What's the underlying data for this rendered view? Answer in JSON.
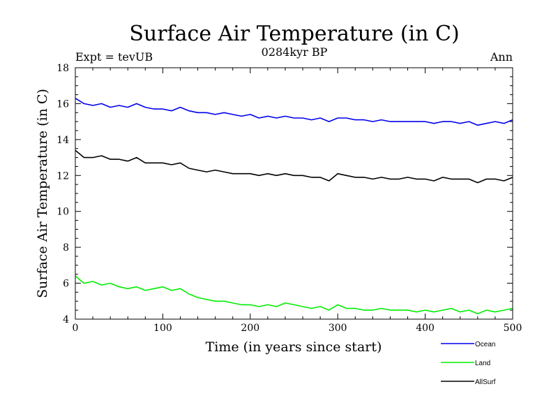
{
  "chart_data": {
    "type": "line",
    "title": "Surface Air Temperature (in C)",
    "subtitle": "0284kyr BP",
    "annotation_left": "Expt = tevUB",
    "annotation_right": "Ann",
    "xlabel": "Time (in years since start)",
    "ylabel": "Surface Air Temperature (in C)",
    "xlim": [
      0,
      500
    ],
    "ylim": [
      4,
      18
    ],
    "xticks": [
      0,
      100,
      200,
      300,
      400,
      500
    ],
    "yticks": [
      4,
      6,
      8,
      10,
      12,
      14,
      16,
      18
    ],
    "legend_position": "below-right",
    "grid": false,
    "series": [
      {
        "name": "Ocean",
        "color": "#0000ee",
        "x": [
          0,
          10,
          20,
          30,
          40,
          50,
          60,
          70,
          80,
          90,
          100,
          110,
          120,
          130,
          140,
          150,
          160,
          170,
          180,
          190,
          200,
          210,
          220,
          230,
          240,
          250,
          260,
          270,
          280,
          290,
          300,
          310,
          320,
          330,
          340,
          350,
          360,
          370,
          380,
          390,
          400,
          410,
          420,
          430,
          440,
          450,
          460,
          470,
          480,
          490,
          500
        ],
        "values": [
          16.3,
          16.0,
          15.9,
          16.0,
          15.8,
          15.9,
          15.8,
          16.0,
          15.8,
          15.7,
          15.7,
          15.6,
          15.8,
          15.6,
          15.5,
          15.5,
          15.4,
          15.5,
          15.4,
          15.3,
          15.4,
          15.2,
          15.3,
          15.2,
          15.3,
          15.2,
          15.2,
          15.1,
          15.2,
          15.0,
          15.2,
          15.2,
          15.1,
          15.1,
          15.0,
          15.1,
          15.0,
          15.0,
          15.0,
          15.0,
          15.0,
          14.9,
          15.0,
          15.0,
          14.9,
          15.0,
          14.8,
          14.9,
          15.0,
          14.9,
          15.1
        ]
      },
      {
        "name": "Land",
        "color": "#00ee00",
        "x": [
          0,
          10,
          20,
          30,
          40,
          50,
          60,
          70,
          80,
          90,
          100,
          110,
          120,
          130,
          140,
          150,
          160,
          170,
          180,
          190,
          200,
          210,
          220,
          230,
          240,
          250,
          260,
          270,
          280,
          290,
          300,
          310,
          320,
          330,
          340,
          350,
          360,
          370,
          380,
          390,
          400,
          410,
          420,
          430,
          440,
          450,
          460,
          470,
          480,
          490,
          500
        ],
        "values": [
          6.4,
          6.0,
          6.1,
          5.9,
          6.0,
          5.8,
          5.7,
          5.8,
          5.6,
          5.7,
          5.8,
          5.6,
          5.7,
          5.4,
          5.2,
          5.1,
          5.0,
          5.0,
          4.9,
          4.8,
          4.8,
          4.7,
          4.8,
          4.7,
          4.9,
          4.8,
          4.7,
          4.6,
          4.7,
          4.5,
          4.8,
          4.6,
          4.6,
          4.5,
          4.5,
          4.6,
          4.5,
          4.5,
          4.5,
          4.4,
          4.5,
          4.4,
          4.5,
          4.6,
          4.4,
          4.5,
          4.3,
          4.5,
          4.4,
          4.5,
          4.6
        ]
      },
      {
        "name": "AllSurf",
        "color": "#000000",
        "x": [
          0,
          10,
          20,
          30,
          40,
          50,
          60,
          70,
          80,
          90,
          100,
          110,
          120,
          130,
          140,
          150,
          160,
          170,
          180,
          190,
          200,
          210,
          220,
          230,
          240,
          250,
          260,
          270,
          280,
          290,
          300,
          310,
          320,
          330,
          340,
          350,
          360,
          370,
          380,
          390,
          400,
          410,
          420,
          430,
          440,
          450,
          460,
          470,
          480,
          490,
          500
        ],
        "values": [
          13.4,
          13.0,
          13.0,
          13.1,
          12.9,
          12.9,
          12.8,
          13.0,
          12.7,
          12.7,
          12.7,
          12.6,
          12.7,
          12.4,
          12.3,
          12.2,
          12.3,
          12.2,
          12.1,
          12.1,
          12.1,
          12.0,
          12.1,
          12.0,
          12.1,
          12.0,
          12.0,
          11.9,
          11.9,
          11.7,
          12.1,
          12.0,
          11.9,
          11.9,
          11.8,
          11.9,
          11.8,
          11.8,
          11.9,
          11.8,
          11.8,
          11.7,
          11.9,
          11.8,
          11.8,
          11.8,
          11.6,
          11.8,
          11.8,
          11.7,
          11.9
        ]
      }
    ]
  }
}
